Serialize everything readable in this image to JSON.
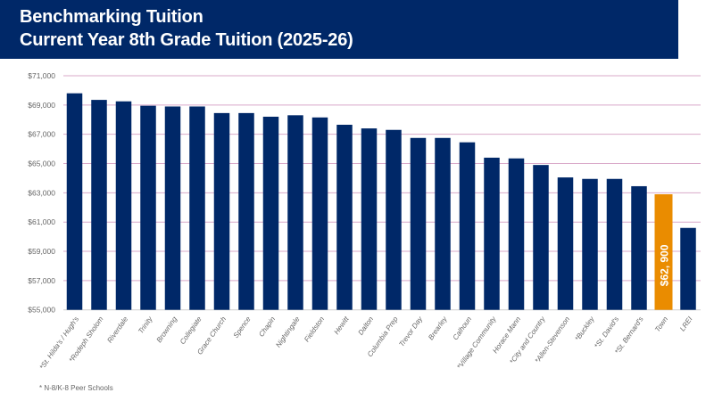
{
  "header": {
    "title_line1": "Benchmarking Tuition",
    "title_line2": "Current Year 8th Grade Tuition (2025-26)"
  },
  "footnote": "* N-8/K-8 Peer Schools",
  "chart_data": {
    "type": "bar",
    "title": "Current Year 8th Grade Tuition (2025-26)",
    "xlabel": "",
    "ylabel": "",
    "ylim": [
      55000,
      71000
    ],
    "yticks": [
      55000,
      57000,
      59000,
      61000,
      63000,
      65000,
      67000,
      69000,
      71000
    ],
    "ytick_labels": [
      "$55,000",
      "$57,000",
      "$59,000",
      "$61,000",
      "$63,000",
      "$65,000",
      "$67,000",
      "$69,000",
      "$71,000"
    ],
    "grid": true,
    "categories": [
      "*St. Hilda's / Hugh's",
      "*Rodeph Sholom",
      "Riverdale",
      "Trinity",
      "Browning",
      "Collegiate",
      "Grace Church",
      "Spence",
      "Chapin",
      "Nightingale",
      "Fieldston",
      "Hewitt",
      "Dalton",
      "Columbia Prep",
      "Trevor Day",
      "Brearley",
      "Calhoun",
      "*Village Community",
      "Horace Mann",
      "*City and Country",
      "*Allen-Stevenson",
      "*Buckley",
      "*St. David's",
      "*St. Bernard's",
      "Town",
      "LREI"
    ],
    "values": [
      69800,
      69350,
      69250,
      68950,
      68900,
      68900,
      68450,
      68450,
      68200,
      68300,
      68150,
      67650,
      67400,
      67300,
      66750,
      66750,
      66450,
      65400,
      65350,
      64900,
      64050,
      63950,
      63950,
      63450,
      62900,
      60600
    ],
    "highlight_index": 24,
    "highlight_label": "$62, 900",
    "colors": {
      "bar": "#002868",
      "highlight": "#EA8C00",
      "grid": "#D9A9C9",
      "banner": "#002868"
    }
  }
}
